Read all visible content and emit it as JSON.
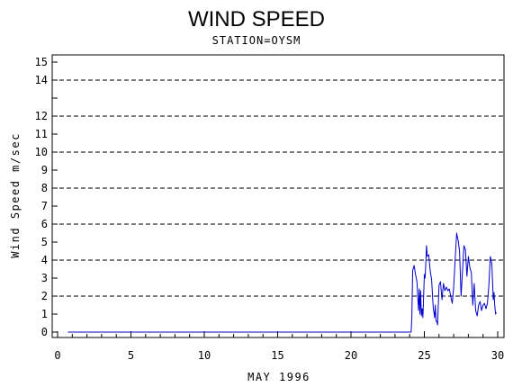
{
  "chart_data": {
    "type": "line",
    "title": "WIND SPEED",
    "subtitle": "STATION=OYSM",
    "xlabel": "MAY 1996",
    "ylabel": "Wind Speed m/sec",
    "xlim": [
      0,
      30
    ],
    "ylim": [
      0,
      15
    ],
    "x_ticks": [
      0,
      5,
      10,
      15,
      20,
      25,
      30
    ],
    "y_ticks": [
      0,
      1,
      2,
      3,
      4,
      5,
      6,
      7,
      8,
      9,
      10,
      11,
      12,
      13,
      14,
      15
    ],
    "y_ticks_skip_label": [
      13
    ],
    "grid_lines_y": [
      2,
      4,
      6,
      8,
      10,
      12,
      14
    ],
    "grid_style": "dashed",
    "line_color": "#0000cc",
    "series": [
      {
        "name": "",
        "x": [
          0.7,
          24.1,
          24.15,
          24.2,
          24.3,
          24.4,
          24.5,
          24.6,
          24.65,
          24.7,
          24.75,
          24.8,
          24.85,
          24.9,
          24.95,
          25.0,
          25.05,
          25.1,
          25.15,
          25.2,
          25.3,
          25.4,
          25.5,
          25.6,
          25.7,
          25.75,
          25.8,
          25.85,
          25.9,
          26.0,
          26.1,
          26.2,
          26.3,
          26.4,
          26.5,
          26.6,
          26.7,
          26.8,
          26.9,
          27.0,
          27.1,
          27.2,
          27.3,
          27.4,
          27.5,
          27.6,
          27.7,
          27.8,
          27.9,
          28.0,
          28.1,
          28.2,
          28.3,
          28.4,
          28.5,
          28.6,
          28.7,
          28.8,
          28.9,
          29.0,
          29.1,
          29.2,
          29.3,
          29.4,
          29.5,
          29.6,
          29.7,
          29.75,
          29.8,
          29.85,
          29.9
        ],
        "y": [
          0,
          0,
          0.8,
          3.4,
          3.7,
          3.2,
          2.8,
          1.2,
          2.4,
          1.0,
          2.3,
          0.9,
          1.3,
          0.8,
          2.0,
          3.2,
          3.0,
          3.8,
          4.8,
          4.2,
          4.3,
          3.4,
          2.9,
          1.4,
          0.8,
          1.5,
          0.6,
          0.6,
          0.4,
          2.6,
          2.8,
          1.8,
          2.7,
          2.3,
          2.5,
          2.3,
          2.4,
          2.0,
          1.6,
          2.5,
          4.0,
          5.5,
          5.1,
          4.5,
          2.0,
          3.4,
          4.8,
          4.6,
          3.1,
          4.2,
          3.6,
          3.3,
          1.5,
          2.7,
          1.2,
          0.9,
          1.5,
          1.7,
          1.2,
          1.5,
          1.6,
          1.3,
          1.6,
          2.6,
          4.2,
          3.8,
          1.8,
          2.2,
          1.5,
          1.0,
          1.1
        ]
      }
    ]
  }
}
